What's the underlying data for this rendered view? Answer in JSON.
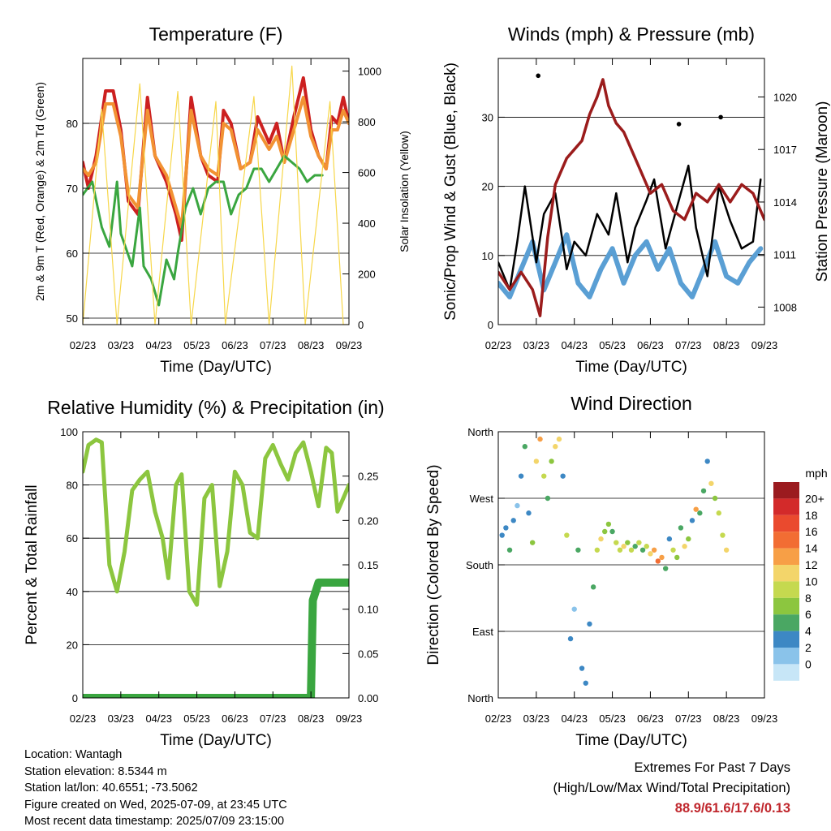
{
  "chart_data": [
    {
      "type": "line",
      "title": "Temperature (F)",
      "xlabel": "Time (Day/UTC)",
      "ylabel": "2m & 9m T (Red, Orange) & 2m Td (Green)",
      "y2label": "Solar Insolation (Yellow)",
      "x_ticks": [
        "02/23",
        "03/23",
        "04/23",
        "05/23",
        "06/23",
        "07/23",
        "08/23",
        "09/23"
      ],
      "ylim": [
        49,
        90
      ],
      "y_ticks": [
        50,
        60,
        70,
        80
      ],
      "y2lim": [
        0,
        1050
      ],
      "y2_ticks": [
        0,
        200,
        400,
        600,
        800,
        1000
      ],
      "grid": true,
      "series": [
        {
          "color": "#cc2020",
          "x": [
            0,
            0.15,
            0.35,
            0.6,
            0.8,
            1.0,
            1.2,
            1.45,
            1.7,
            1.9,
            2.2,
            2.45,
            2.6,
            2.85,
            3.1,
            3.3,
            3.55,
            3.7,
            3.9,
            4.15,
            4.4,
            4.6,
            4.9,
            5.1,
            5.3,
            5.55,
            5.8,
            6.0,
            6.2,
            6.4,
            6.55,
            6.7,
            6.85,
            7.0
          ],
          "values": [
            74,
            70,
            75,
            85,
            85,
            79,
            68,
            66,
            84,
            75,
            71,
            66,
            62,
            84,
            75,
            72,
            71,
            82,
            80,
            73,
            74,
            81,
            77,
            80,
            74,
            81,
            87,
            79,
            75,
            73,
            81,
            80,
            84,
            80
          ]
        },
        {
          "color": "#f29233",
          "x": [
            0,
            0.15,
            0.35,
            0.6,
            0.8,
            1.0,
            1.2,
            1.45,
            1.7,
            1.9,
            2.2,
            2.45,
            2.6,
            2.85,
            3.1,
            3.3,
            3.55,
            3.7,
            3.9,
            4.15,
            4.4,
            4.6,
            4.9,
            5.1,
            5.3,
            5.55,
            5.8,
            6.0,
            6.2,
            6.4,
            6.55,
            6.7,
            6.85,
            7.0
          ],
          "values": [
            73,
            72,
            74,
            83,
            83,
            78,
            69,
            67,
            82,
            75,
            72,
            67,
            64,
            82,
            75,
            73,
            72,
            80,
            79,
            73,
            74,
            79,
            76,
            78,
            74,
            79,
            84,
            78,
            75,
            73,
            79,
            79,
            82,
            80
          ]
        },
        {
          "color": "#3aa640",
          "x": [
            0,
            0.25,
            0.5,
            0.7,
            0.9,
            1.0,
            1.3,
            1.5,
            1.6,
            1.8,
            2.0,
            2.2,
            2.4,
            2.5,
            2.7,
            2.9,
            3.1,
            3.3,
            3.5,
            3.7,
            3.9,
            4.1,
            4.3,
            4.5,
            4.7,
            4.9,
            5.1,
            5.3,
            5.5,
            5.7,
            5.9,
            6.1,
            6.3
          ],
          "values": [
            69,
            71,
            64,
            61,
            71,
            63,
            58,
            67,
            58,
            56,
            52,
            59,
            56,
            60,
            67,
            70,
            66,
            70,
            71,
            71,
            66,
            69,
            70,
            73,
            73,
            71,
            73,
            75,
            74,
            73,
            71,
            72,
            72
          ]
        },
        {
          "color": "#f7d74a",
          "x": [
            0,
            0.5,
            0.9,
            1.5,
            1.9,
            2.5,
            2.85,
            3.5,
            3.75,
            4.5,
            4.9,
            5.5,
            5.85,
            6.5,
            6.85,
            7.0
          ],
          "values": [
            0,
            850,
            0,
            950,
            0,
            920,
            0,
            880,
            0,
            900,
            0,
            1020,
            0,
            880,
            0,
            0
          ]
        }
      ]
    },
    {
      "type": "line",
      "title": "Winds (mph) & Pressure (mb)",
      "xlabel": "Time (Day/UTC)",
      "ylabel": "Sonic/Prop Wind & Gust (Blue, Black)",
      "y2label": "Station Pressure (Maroon)",
      "x_ticks": [
        "02/23",
        "03/23",
        "04/23",
        "05/23",
        "06/23",
        "07/23",
        "08/23",
        "09/23"
      ],
      "ylim": [
        0,
        38.5
      ],
      "y_ticks": [
        0,
        10,
        20,
        30
      ],
      "y2lim": [
        1007,
        1022.2
      ],
      "y2_ticks": [
        1008,
        1011,
        1014,
        1017,
        1020
      ],
      "grid": true,
      "series": [
        {
          "color": "#5a9fd4",
          "x": [
            0,
            0.3,
            0.6,
            0.9,
            1.2,
            1.5,
            1.8,
            2.1,
            2.4,
            2.7,
            3.0,
            3.3,
            3.6,
            3.9,
            4.2,
            4.5,
            4.8,
            5.1,
            5.4,
            5.7,
            6.0,
            6.3,
            6.6,
            6.9
          ],
          "values": [
            6,
            4,
            8,
            12,
            5,
            9,
            13,
            6,
            4,
            8,
            11,
            6,
            10,
            12,
            8,
            11,
            6,
            4,
            8,
            12,
            7,
            6,
            9,
            11
          ]
        },
        {
          "color": "#000000",
          "x": [
            0,
            0.3,
            0.5,
            0.7,
            1.0,
            1.2,
            1.5,
            1.8,
            2.0,
            2.3,
            2.6,
            2.9,
            3.1,
            3.4,
            3.6,
            3.9,
            4.1,
            4.4,
            4.7,
            5.0,
            5.2,
            5.5,
            5.8,
            6.1,
            6.4,
            6.7,
            6.9
          ],
          "values": [
            9,
            5,
            12,
            20,
            9,
            16,
            19,
            8,
            12,
            10,
            16,
            13,
            19,
            9,
            14,
            18,
            21,
            11,
            17,
            23,
            14,
            7,
            20,
            15,
            11,
            12,
            21
          ]
        },
        {
          "color": "#9b1c1c",
          "x": [
            0,
            0.3,
            0.6,
            0.9,
            1.1,
            1.3,
            1.5,
            1.8,
            2.0,
            2.2,
            2.4,
            2.6,
            2.75,
            2.9,
            3.1,
            3.3,
            3.5,
            3.7,
            4.0,
            4.3,
            4.6,
            4.9,
            5.2,
            5.5,
            5.8,
            6.1,
            6.4,
            6.7,
            7.0
          ],
          "values": [
            1010,
            1009,
            1010,
            1009,
            1007.5,
            1012,
            1015,
            1016.5,
            1017,
            1017.5,
            1019,
            1020,
            1021,
            1019.5,
            1018.5,
            1018,
            1017,
            1016,
            1014.5,
            1015,
            1013.5,
            1013,
            1014.5,
            1014,
            1015,
            1014,
            1015,
            1014.5,
            1013
          ]
        }
      ],
      "markers": [
        {
          "x": 1.05,
          "y": 36
        },
        {
          "x": 4.75,
          "y": 29
        },
        {
          "x": 5.85,
          "y": 30
        }
      ]
    },
    {
      "type": "line",
      "title": "Relative Humidity (%) & Precipitation (in)",
      "xlabel": "Time (Day/UTC)",
      "ylabel": "Percent & Total Rainfall",
      "x_ticks": [
        "02/23",
        "03/23",
        "04/23",
        "05/23",
        "06/23",
        "07/23",
        "08/23",
        "09/23"
      ],
      "ylim": [
        0,
        100
      ],
      "y_ticks": [
        0,
        20,
        40,
        60,
        80,
        100
      ],
      "y2lim": [
        0,
        0.3
      ],
      "y2_ticks": [
        "0.00",
        "0.05",
        "0.10",
        "0.15",
        "0.20",
        "0.25"
      ],
      "grid": true,
      "series": [
        {
          "color": "#8cc63f",
          "x": [
            0,
            0.15,
            0.35,
            0.5,
            0.7,
            0.9,
            1.1,
            1.3,
            1.5,
            1.7,
            1.9,
            2.1,
            2.25,
            2.45,
            2.6,
            2.8,
            3.0,
            3.2,
            3.4,
            3.6,
            3.8,
            4.0,
            4.2,
            4.4,
            4.6,
            4.8,
            5.0,
            5.2,
            5.4,
            5.6,
            5.8,
            6.0,
            6.2,
            6.4,
            6.55,
            6.7,
            6.85,
            7.0
          ],
          "values": [
            85,
            95,
            97,
            96,
            50,
            40,
            55,
            78,
            82,
            85,
            70,
            60,
            45,
            80,
            84,
            40,
            35,
            75,
            80,
            42,
            55,
            85,
            80,
            62,
            60,
            90,
            95,
            88,
            82,
            92,
            96,
            85,
            72,
            94,
            92,
            70,
            75,
            80
          ]
        },
        {
          "color": "#3aa640",
          "x": [
            0,
            1.0,
            2.0,
            3.0,
            4.0,
            5.0,
            5.8,
            6.0,
            6.05,
            6.2,
            6.5,
            7.0
          ],
          "values": [
            0,
            0,
            0,
            0,
            0,
            0,
            0,
            0,
            0.11,
            0.13,
            0.13,
            0.13
          ]
        }
      ]
    },
    {
      "type": "scatter",
      "title": "Wind Direction",
      "xlabel": "Time (Day/UTC)",
      "ylabel": "Direction (Colored By Speed)",
      "x_ticks": [
        "02/23",
        "03/23",
        "04/23",
        "05/23",
        "06/23",
        "07/23",
        "08/23",
        "09/23"
      ],
      "y_ticks": [
        "North",
        "East",
        "South",
        "West",
        "North"
      ],
      "ylim": [
        0,
        360
      ],
      "grid": true,
      "legend": {
        "title": "mph",
        "labels": [
          "20+",
          "18",
          "16",
          "14",
          "12",
          "10",
          "8",
          "6",
          "4",
          "2",
          "0"
        ],
        "colors": [
          "#9b1b1f",
          "#d32a2a",
          "#ea4a2e",
          "#f26d33",
          "#f79f46",
          "#f3d56a",
          "#c5d94f",
          "#8cc63f",
          "#4aa763",
          "#3d88c4",
          "#8ac3ea",
          "#c7e6f7"
        ]
      },
      "points": [
        {
          "x": 0.1,
          "y": 220,
          "s": 3
        },
        {
          "x": 0.2,
          "y": 230,
          "s": 4
        },
        {
          "x": 0.3,
          "y": 200,
          "s": 5
        },
        {
          "x": 0.4,
          "y": 240,
          "s": 3
        },
        {
          "x": 0.5,
          "y": 260,
          "s": 2
        },
        {
          "x": 0.6,
          "y": 300,
          "s": 3
        },
        {
          "x": 0.7,
          "y": 340,
          "s": 6
        },
        {
          "x": 0.8,
          "y": 250,
          "s": 4
        },
        {
          "x": 0.9,
          "y": 210,
          "s": 7
        },
        {
          "x": 1.0,
          "y": 320,
          "s": 12
        },
        {
          "x": 1.1,
          "y": 350,
          "s": 14
        },
        {
          "x": 1.2,
          "y": 300,
          "s": 9
        },
        {
          "x": 1.3,
          "y": 270,
          "s": 5
        },
        {
          "x": 1.4,
          "y": 320,
          "s": 7
        },
        {
          "x": 1.5,
          "y": 340,
          "s": 12
        },
        {
          "x": 1.6,
          "y": 350,
          "s": 11
        },
        {
          "x": 1.7,
          "y": 300,
          "s": 4
        },
        {
          "x": 1.8,
          "y": 220,
          "s": 9
        },
        {
          "x": 1.9,
          "y": 80,
          "s": 3
        },
        {
          "x": 2.0,
          "y": 120,
          "s": 2
        },
        {
          "x": 2.1,
          "y": 200,
          "s": 5
        },
        {
          "x": 2.2,
          "y": 40,
          "s": 3
        },
        {
          "x": 2.3,
          "y": 20,
          "s": 4
        },
        {
          "x": 2.4,
          "y": 100,
          "s": 3
        },
        {
          "x": 2.5,
          "y": 150,
          "s": 5
        },
        {
          "x": 2.6,
          "y": 200,
          "s": 9
        },
        {
          "x": 2.7,
          "y": 215,
          "s": 11
        },
        {
          "x": 2.8,
          "y": 225,
          "s": 8
        },
        {
          "x": 2.9,
          "y": 235,
          "s": 7
        },
        {
          "x": 3.0,
          "y": 225,
          "s": 6
        },
        {
          "x": 3.1,
          "y": 210,
          "s": 9
        },
        {
          "x": 3.2,
          "y": 200,
          "s": 10
        },
        {
          "x": 3.3,
          "y": 205,
          "s": 11
        },
        {
          "x": 3.4,
          "y": 210,
          "s": 8
        },
        {
          "x": 3.5,
          "y": 200,
          "s": 10
        },
        {
          "x": 3.6,
          "y": 205,
          "s": 6
        },
        {
          "x": 3.7,
          "y": 210,
          "s": 9
        },
        {
          "x": 3.8,
          "y": 200,
          "s": 5
        },
        {
          "x": 3.9,
          "y": 205,
          "s": 10
        },
        {
          "x": 4.0,
          "y": 195,
          "s": 12
        },
        {
          "x": 4.1,
          "y": 200,
          "s": 14
        },
        {
          "x": 4.2,
          "y": 185,
          "s": 16
        },
        {
          "x": 4.3,
          "y": 190,
          "s": 14
        },
        {
          "x": 4.4,
          "y": 175,
          "s": 6
        },
        {
          "x": 4.5,
          "y": 215,
          "s": 3
        },
        {
          "x": 4.6,
          "y": 200,
          "s": 10
        },
        {
          "x": 4.7,
          "y": 190,
          "s": 8
        },
        {
          "x": 4.8,
          "y": 230,
          "s": 5
        },
        {
          "x": 4.9,
          "y": 205,
          "s": 12
        },
        {
          "x": 5.0,
          "y": 215,
          "s": 7
        },
        {
          "x": 5.1,
          "y": 240,
          "s": 4
        },
        {
          "x": 5.2,
          "y": 255,
          "s": 13
        },
        {
          "x": 5.3,
          "y": 250,
          "s": 6
        },
        {
          "x": 5.4,
          "y": 280,
          "s": 5
        },
        {
          "x": 5.5,
          "y": 320,
          "s": 3
        },
        {
          "x": 5.6,
          "y": 290,
          "s": 12
        },
        {
          "x": 5.7,
          "y": 270,
          "s": 8
        },
        {
          "x": 5.8,
          "y": 250,
          "s": 9
        },
        {
          "x": 5.9,
          "y": 220,
          "s": 10
        },
        {
          "x": 6.0,
          "y": 200,
          "s": 11
        }
      ]
    }
  ],
  "info": {
    "location": "Location: Wantagh",
    "elevation": "Station elevation: 8.5344 m",
    "latlon": "Station lat/lon: 40.6551; -73.5062",
    "created": "Figure created on Wed, 2025-07-09, at 23:45 UTC",
    "recent": "Most recent data timestamp: 2025/07/09 23:15:00"
  },
  "extremes": {
    "line1": "Extremes For Past 7 Days",
    "line2": "(High/Low/Max Wind/Total Precipitation)",
    "values": "88.9/61.6/17.6/0.13"
  }
}
